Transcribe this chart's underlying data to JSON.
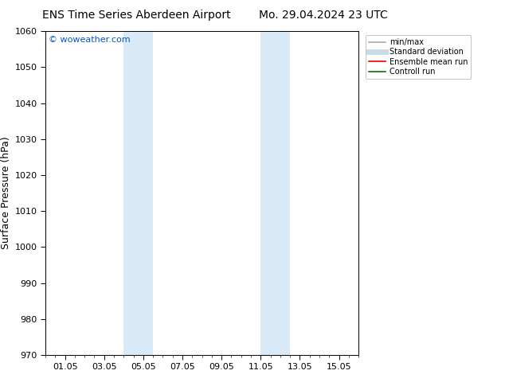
{
  "title_left": "ENS Time Series Aberdeen Airport",
  "title_right": "Mo. 29.04.2024 23 UTC",
  "ylabel": "Surface Pressure (hPa)",
  "ylim": [
    970,
    1060
  ],
  "yticks": [
    970,
    980,
    990,
    1000,
    1010,
    1020,
    1030,
    1040,
    1050,
    1060
  ],
  "xtick_labels": [
    "01.05",
    "03.05",
    "05.05",
    "07.05",
    "09.05",
    "11.05",
    "13.05",
    "15.05"
  ],
  "xtick_positions": [
    1,
    3,
    5,
    7,
    9,
    11,
    13,
    15
  ],
  "xlim": [
    0,
    16
  ],
  "watermark": "© woweather.com",
  "watermark_color": "#0055cc",
  "shaded_bands": [
    {
      "x_start": 4.0,
      "x_end": 5.5
    },
    {
      "x_start": 11.0,
      "x_end": 12.5
    }
  ],
  "shaded_color": "#daeaf7",
  "background_color": "#ffffff",
  "legend_items": [
    {
      "label": "min/max",
      "color": "#aaaaaa",
      "lw": 1.2
    },
    {
      "label": "Standard deviation",
      "color": "#c8dce8",
      "lw": 5
    },
    {
      "label": "Ensemble mean run",
      "color": "#ee0000",
      "lw": 1.2
    },
    {
      "label": "Controll run",
      "color": "#007700",
      "lw": 1.2
    }
  ],
  "title_fontsize": 10,
  "tick_fontsize": 8,
  "ylabel_fontsize": 9,
  "watermark_fontsize": 8
}
